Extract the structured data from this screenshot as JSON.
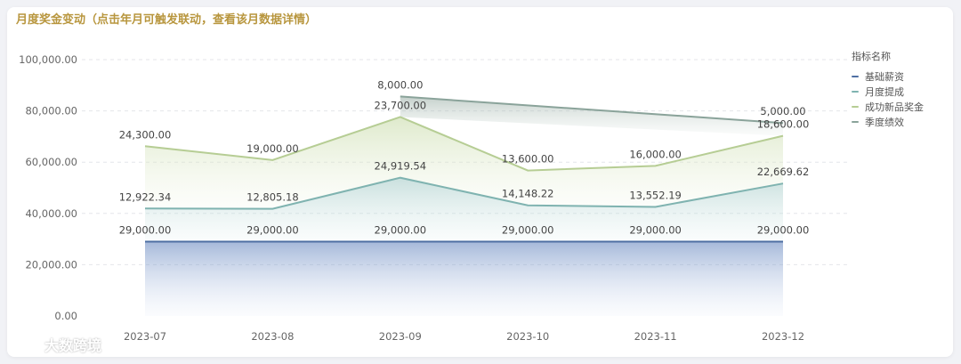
{
  "title": "月度奖金变动（点击年月可触发联动，查看该月数据详情）",
  "legend_title": "指标名称",
  "watermark": "大数跨境",
  "chart_data": {
    "type": "area",
    "x": [
      "2023-07",
      "2023-08",
      "2023-09",
      "2023-10",
      "2023-11",
      "2023-12"
    ],
    "ylim": [
      0,
      100000
    ],
    "yticks": [
      0,
      20000,
      40000,
      60000,
      80000,
      100000
    ],
    "ytick_labels": [
      "0.00",
      "20,000.00",
      "40,000.00",
      "60,000.00",
      "80,000.00",
      "100,000.00"
    ],
    "stacked": true,
    "series": [
      {
        "name": "基础薪资",
        "color": "#4f6fa3",
        "values": [
          29000,
          29000,
          29000,
          29000,
          29000,
          29000
        ],
        "labels": [
          "29,000.00",
          "29,000.00",
          "29,000.00",
          "29,000.00",
          "29,000.00",
          "29,000.00"
        ]
      },
      {
        "name": "月度提成",
        "color": "#7fb3b0",
        "values": [
          12922.34,
          12805.18,
          24919.54,
          14148.22,
          13552.19,
          22669.62
        ],
        "labels": [
          "12,922.34",
          "12,805.18",
          "24,919.54",
          "14,148.22",
          "13,552.19",
          "22,669.62"
        ]
      },
      {
        "name": "成功新品奖金",
        "color": "#b6cd94",
        "values": [
          24300,
          19000,
          23700,
          13600,
          16000,
          18600
        ],
        "labels": [
          "24,300.00",
          "19,000.00",
          "23,700.00",
          "13,600.00",
          "16,000.00",
          "18,600.00"
        ]
      },
      {
        "name": "季度绩效",
        "color": "#8aa39a",
        "values": [
          null,
          null,
          8000,
          null,
          null,
          5000
        ],
        "labels": [
          null,
          null,
          "8,000.00",
          null,
          null,
          "5,000.00"
        ]
      }
    ],
    "grid": true,
    "legend_position": "right"
  }
}
